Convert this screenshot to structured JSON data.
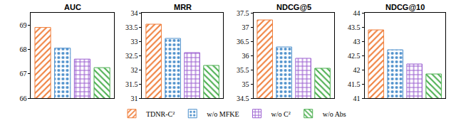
{
  "chart_data": [
    {
      "type": "bar",
      "title": "AUC",
      "ylim": [
        66,
        69.5
      ],
      "yticks": [
        66,
        67,
        68,
        69
      ],
      "tick_labels": "y",
      "legend": "bottom",
      "series": [
        {
          "name": "TDNR-C²",
          "color": "#f07f3c",
          "values": [
            68.9
          ]
        },
        {
          "name": "w/o MFKE",
          "color": "#4e90cc",
          "values": [
            68.05
          ]
        },
        {
          "name": "w/o C²",
          "color": "#9b5fd0",
          "values": [
            67.6
          ]
        },
        {
          "name": "w/o Abs",
          "color": "#4caf50",
          "values": [
            67.25
          ]
        }
      ]
    },
    {
      "type": "bar",
      "title": "MRR",
      "ylim": [
        31,
        34
      ],
      "yticks": [
        31,
        31.5,
        32,
        32.5,
        33,
        33.5,
        34
      ],
      "tick_labels": "y",
      "series": [
        {
          "name": "TDNR-C²",
          "color": "#f07f3c",
          "values": [
            33.6
          ]
        },
        {
          "name": "w/o MFKE",
          "color": "#4e90cc",
          "values": [
            33.1
          ]
        },
        {
          "name": "w/o C²",
          "color": "#9b5fd0",
          "values": [
            32.6
          ]
        },
        {
          "name": "w/o Abs",
          "color": "#4caf50",
          "values": [
            32.15
          ]
        }
      ]
    },
    {
      "type": "bar",
      "title": "NDCG@5",
      "ylim": [
        34.5,
        37.5
      ],
      "yticks": [
        34.5,
        35,
        35.5,
        36,
        36.5,
        37,
        37.5
      ],
      "tick_labels": "y",
      "series": [
        {
          "name": "TDNR-C²",
          "color": "#f07f3c",
          "values": [
            37.25
          ]
        },
        {
          "name": "w/o MFKE",
          "color": "#4e90cc",
          "values": [
            36.3
          ]
        },
        {
          "name": "w/o C²",
          "color": "#9b5fd0",
          "values": [
            35.9
          ]
        },
        {
          "name": "w/o Abs",
          "color": "#4caf50",
          "values": [
            35.55
          ]
        }
      ]
    },
    {
      "type": "bar",
      "title": "NDCG@10",
      "ylim": [
        41,
        44
      ],
      "yticks": [
        41,
        41.5,
        42,
        42.5,
        43,
        43.5,
        44
      ],
      "tick_labels": "y",
      "series": [
        {
          "name": "TDNR-C²",
          "color": "#f07f3c",
          "values": [
            43.4
          ]
        },
        {
          "name": "w/o MFKE",
          "color": "#4e90cc",
          "values": [
            42.7
          ]
        },
        {
          "name": "w/o C²",
          "color": "#9b5fd0",
          "values": [
            42.2
          ]
        },
        {
          "name": "w/o Abs",
          "color": "#4caf50",
          "values": [
            41.85
          ]
        }
      ]
    }
  ]
}
